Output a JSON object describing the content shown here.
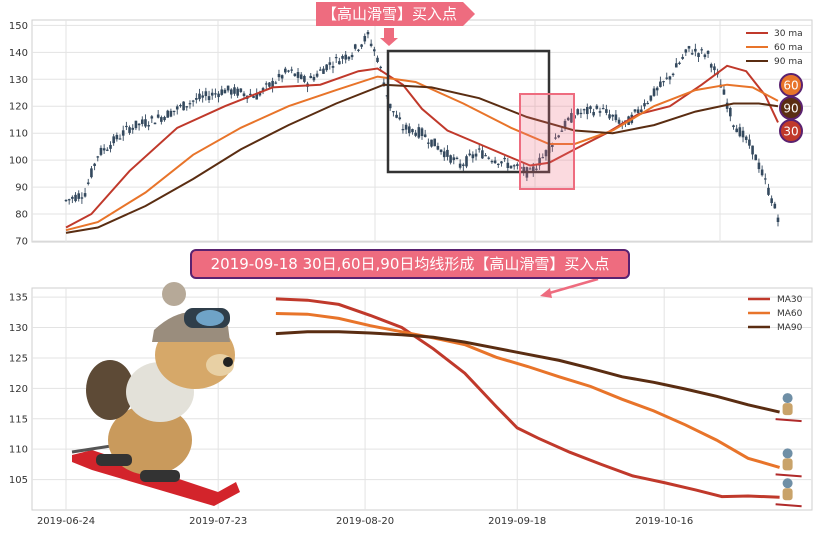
{
  "top_banner": "【高山滑雪】买入点",
  "mid_banner": "2019-09-18 30日,60日,90日均线形成【高山滑雪】买入点",
  "colors": {
    "ma30": "#c0392b",
    "ma60": "#e8742a",
    "ma90": "#5a2d12",
    "candle": "#34495e",
    "accent": "#ee6c7f",
    "badge_border": "#5a2270"
  },
  "chart_data": [
    {
      "type": "line",
      "note_kind": "candlestick_with_moving_averages",
      "ylim": [
        70,
        152
      ],
      "yticks": [
        70,
        80,
        90,
        100,
        110,
        120,
        130,
        140,
        150
      ],
      "grid": true,
      "legend": {
        "position": "top-right",
        "entries": [
          "30 ma",
          "60 ma",
          "90 ma"
        ]
      },
      "badges": [
        "60",
        "90",
        "30"
      ],
      "price_path": [
        [
          0,
          85
        ],
        [
          6,
          88
        ],
        [
          10,
          102
        ],
        [
          20,
          112
        ],
        [
          30,
          116
        ],
        [
          40,
          122
        ],
        [
          50,
          126
        ],
        [
          60,
          124
        ],
        [
          70,
          133
        ],
        [
          76,
          129
        ],
        [
          82,
          135
        ],
        [
          90,
          140
        ],
        [
          95,
          146
        ],
        [
          98,
          138
        ],
        [
          102,
          120
        ],
        [
          106,
          112
        ],
        [
          112,
          110
        ],
        [
          118,
          104
        ],
        [
          124,
          98
        ],
        [
          130,
          103
        ],
        [
          136,
          100
        ],
        [
          142,
          97
        ],
        [
          146,
          95
        ],
        [
          150,
          101
        ],
        [
          155,
          110
        ],
        [
          160,
          117
        ],
        [
          168,
          119
        ],
        [
          176,
          113
        ],
        [
          182,
          121
        ],
        [
          190,
          131
        ],
        [
          196,
          141
        ],
        [
          202,
          139
        ],
        [
          206,
          128
        ],
        [
          210,
          114
        ],
        [
          216,
          104
        ],
        [
          220,
          92
        ],
        [
          224,
          79
        ]
      ],
      "series": [
        {
          "name": "30 ma",
          "points": [
            [
              0,
              75
            ],
            [
              8,
              80
            ],
            [
              20,
              96
            ],
            [
              35,
              112
            ],
            [
              50,
              120
            ],
            [
              65,
              127
            ],
            [
              80,
              128
            ],
            [
              92,
              133
            ],
            [
              98,
              134
            ],
            [
              106,
              128
            ],
            [
              112,
              119
            ],
            [
              120,
              111
            ],
            [
              130,
              106
            ],
            [
              140,
              101
            ],
            [
              146,
              98
            ],
            [
              152,
              99
            ],
            [
              160,
              104
            ],
            [
              170,
              110
            ],
            [
              180,
              117
            ],
            [
              190,
              120
            ],
            [
              200,
              128
            ],
            [
              208,
              135
            ],
            [
              214,
              133
            ],
            [
              220,
              124
            ],
            [
              224,
              114
            ]
          ]
        },
        {
          "name": "60 ma",
          "points": [
            [
              0,
              74
            ],
            [
              10,
              77
            ],
            [
              25,
              88
            ],
            [
              40,
              102
            ],
            [
              55,
              112
            ],
            [
              70,
              120
            ],
            [
              85,
              126
            ],
            [
              98,
              131
            ],
            [
              110,
              129
            ],
            [
              125,
              121
            ],
            [
              140,
              112
            ],
            [
              152,
              106
            ],
            [
              160,
              106
            ],
            [
              172,
              111
            ],
            [
              185,
              120
            ],
            [
              198,
              126
            ],
            [
              208,
              128
            ],
            [
              216,
              127
            ],
            [
              224,
              122
            ]
          ]
        },
        {
          "name": "90 ma",
          "points": [
            [
              0,
              73
            ],
            [
              10,
              75
            ],
            [
              25,
              83
            ],
            [
              40,
              93
            ],
            [
              55,
              104
            ],
            [
              70,
              113
            ],
            [
              85,
              121
            ],
            [
              100,
              128
            ],
            [
              115,
              127
            ],
            [
              130,
              123
            ],
            [
              145,
              116
            ],
            [
              160,
              111
            ],
            [
              172,
              110
            ],
            [
              185,
              113
            ],
            [
              198,
              118
            ],
            [
              210,
              121
            ],
            [
              218,
              121
            ],
            [
              224,
              120
            ]
          ]
        }
      ]
    },
    {
      "type": "line",
      "ylim": [
        100,
        136.5
      ],
      "yticks": [
        105,
        110,
        115,
        120,
        125,
        130,
        135
      ],
      "xticks": [
        "2019-06-24",
        "2019-07-23",
        "2019-08-20",
        "2019-09-18",
        "2019-10-16"
      ],
      "xtick_index": [
        0,
        29,
        57,
        86,
        114
      ],
      "grid": true,
      "legend": {
        "position": "top-right",
        "entries": [
          "MA30",
          "MA60",
          "MA90"
        ]
      },
      "series": [
        {
          "name": "MA30",
          "points": [
            [
              40,
              134.7
            ],
            [
              46,
              134.5
            ],
            [
              52,
              133.8
            ],
            [
              58,
              132
            ],
            [
              64,
              130
            ],
            [
              70,
              126.5
            ],
            [
              76,
              122.5
            ],
            [
              82,
              117
            ],
            [
              86,
              113.5
            ],
            [
              90,
              111.8
            ],
            [
              96,
              109.5
            ],
            [
              102,
              107.5
            ],
            [
              108,
              105.6
            ],
            [
              114,
              104.5
            ],
            [
              120,
              103.3
            ],
            [
              125,
              102.2
            ],
            [
              130,
              102.3
            ],
            [
              136,
              102.1
            ]
          ]
        },
        {
          "name": "MA60",
          "points": [
            [
              40,
              132.3
            ],
            [
              46,
              132.2
            ],
            [
              52,
              131.5
            ],
            [
              58,
              130.3
            ],
            [
              64,
              129.3
            ],
            [
              70,
              128.3
            ],
            [
              76,
              127.2
            ],
            [
              82,
              125.1
            ],
            [
              88,
              123.6
            ],
            [
              94,
              121.9
            ],
            [
              100,
              120.3
            ],
            [
              106,
              118.2
            ],
            [
              112,
              116.3
            ],
            [
              118,
              114
            ],
            [
              124,
              111.5
            ],
            [
              130,
              108.5
            ],
            [
              136,
              107
            ]
          ]
        },
        {
          "name": "MA90",
          "points": [
            [
              40,
              129
            ],
            [
              46,
              129.3
            ],
            [
              52,
              129.3
            ],
            [
              58,
              129.1
            ],
            [
              64,
              128.8
            ],
            [
              70,
              128.4
            ],
            [
              76,
              127.6
            ],
            [
              82,
              126.6
            ],
            [
              88,
              125.6
            ],
            [
              94,
              124.6
            ],
            [
              100,
              123.3
            ],
            [
              106,
              121.9
            ],
            [
              112,
              121
            ],
            [
              118,
              119.9
            ],
            [
              124,
              118.7
            ],
            [
              130,
              117.3
            ],
            [
              136,
              116.1
            ]
          ]
        }
      ]
    }
  ]
}
